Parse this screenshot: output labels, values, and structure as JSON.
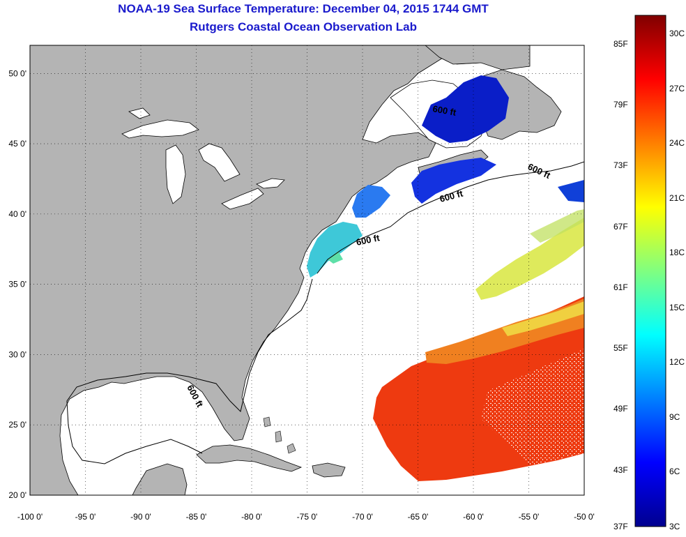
{
  "header": {
    "title": "NOAA-19 Sea Surface Temperature:  December 04, 2015 1744 GMT",
    "subtitle": "Rutgers Coastal Ocean Observation Lab"
  },
  "map": {
    "lon_range": [
      -100,
      -50
    ],
    "lat_range": [
      20,
      52
    ],
    "lon_ticks": [
      "-100 0'",
      "-95 0'",
      "-90 0'",
      "-85 0'",
      "-80 0'",
      "-75 0'",
      "-70 0'",
      "-65 0'",
      "-60 0'",
      "-55 0'",
      "-50 0'"
    ],
    "lat_ticks": [
      "20 0'",
      "25 0'",
      "30 0'",
      "35 0'",
      "40 0'",
      "45 0'",
      "50 0'"
    ],
    "land_color": "#b4b4b4",
    "ocean_color": "#ffffff",
    "isobath_label": "600 ft",
    "grid": true
  },
  "colorbar": {
    "min_c": 3,
    "max_c": 31,
    "f_labels": [
      "85F",
      "79F",
      "73F",
      "67F",
      "61F",
      "55F",
      "49F",
      "43F",
      "37F"
    ],
    "c_labels": [
      "30C",
      "27C",
      "24C",
      "21C",
      "18C",
      "15C",
      "12C",
      "9C",
      "6C",
      "3C"
    ],
    "colormap": "jet"
  }
}
